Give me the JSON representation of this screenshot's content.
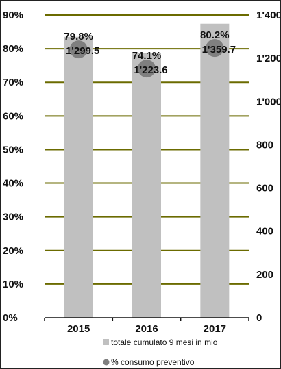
{
  "chart_data": {
    "type": "bar",
    "categories": [
      "2015",
      "2016",
      "2017"
    ],
    "series": [
      {
        "name": "totale cumulato 9 mesi in mio",
        "kind": "bar",
        "axis": "right",
        "values": [
          1299.5,
          1223.6,
          1359.7
        ],
        "labels": [
          "1'299.5",
          "1'223.6",
          "1'359.7"
        ],
        "color": "#c0c0c0"
      },
      {
        "name": "% consumo preventivo",
        "kind": "marker",
        "axis": "left",
        "values": [
          79.8,
          74.1,
          80.2
        ],
        "labels": [
          "79.8%",
          "74.1%",
          "80.2%"
        ],
        "color": "#7f7f7f"
      }
    ],
    "y_left": {
      "min": 0,
      "max": 90,
      "ticks": [
        0,
        10,
        20,
        30,
        40,
        50,
        60,
        70,
        80,
        90
      ],
      "tick_labels": [
        "0%",
        "10%",
        "20%",
        "30%",
        "40%",
        "50%",
        "60%",
        "70%",
        "80%",
        "90%"
      ]
    },
    "y_right": {
      "min": 0,
      "max": 1400,
      "ticks": [
        0,
        200,
        400,
        600,
        800,
        1000,
        1200,
        1400
      ],
      "tick_labels": [
        "0",
        "200",
        "400",
        "600",
        "800",
        "1'000",
        "1'200",
        "1'400"
      ]
    },
    "gridlines": true,
    "grid_color": "#6b6b00",
    "legend_position": "bottom"
  }
}
